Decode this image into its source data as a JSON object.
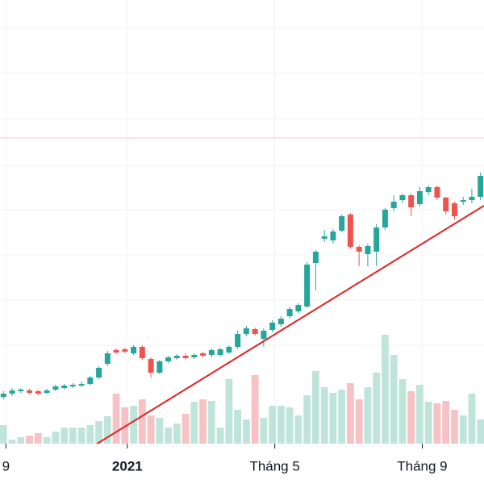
{
  "chart_data": {
    "type": "candlestick",
    "categories": [
      "9",
      null,
      null,
      null,
      null,
      null,
      null,
      null,
      null,
      null,
      null,
      null,
      null,
      null,
      "2021",
      null,
      null,
      null,
      null,
      null,
      null,
      null,
      null,
      null,
      null,
      null,
      null,
      null,
      null,
      null,
      null,
      "Tháng 5",
      null,
      null,
      null,
      null,
      null,
      null,
      null,
      null,
      null,
      null,
      null,
      null,
      null,
      null,
      null,
      null,
      "Tháng 9",
      null,
      null,
      null,
      null,
      null,
      null,
      null
    ],
    "bold_categories": [
      "2021"
    ],
    "open": [
      58,
      62,
      65,
      66,
      65,
      63,
      67,
      69,
      71,
      72,
      74,
      82,
      99,
      116,
      117,
      112,
      120,
      105,
      88,
      102,
      106,
      109,
      107,
      112,
      110,
      110,
      113,
      120,
      136,
      142,
      130,
      141,
      148,
      158,
      164,
      170,
      224,
      254,
      252,
      264,
      284,
      244,
      235,
      238,
      268,
      292,
      302,
      308,
      297,
      312,
      318,
      305,
      298,
      300,
      302,
      306
    ],
    "high": [
      65,
      69,
      69,
      68,
      67,
      68,
      73,
      74,
      75,
      77,
      84,
      96,
      115,
      118,
      119,
      122,
      122,
      107,
      104,
      109,
      111,
      112,
      112,
      114,
      118,
      119,
      122,
      140,
      146,
      144,
      143,
      153,
      158,
      170,
      174,
      225,
      240,
      265,
      266,
      284,
      286,
      246,
      248,
      272,
      292,
      308,
      310,
      310,
      318,
      320,
      320,
      306,
      300,
      306,
      316,
      336
    ],
    "low": [
      55,
      59,
      63,
      61,
      60,
      61,
      65,
      67,
      69,
      70,
      72,
      80,
      96,
      111,
      112,
      110,
      104,
      82,
      86,
      100,
      104,
      104,
      105,
      107,
      107,
      108,
      111,
      117,
      133,
      134,
      120,
      138,
      145,
      155,
      162,
      168,
      190,
      250,
      248,
      262,
      242,
      220,
      220,
      220,
      265,
      288,
      298,
      282,
      294,
      308,
      302,
      284,
      278,
      296,
      298,
      302
    ],
    "close": [
      62,
      66,
      67,
      63,
      62,
      66,
      71,
      72,
      73,
      74,
      82,
      94,
      112,
      113,
      114,
      120,
      106,
      88,
      102,
      107,
      109,
      106,
      110,
      109,
      116,
      117,
      120,
      136,
      143,
      136,
      140,
      150,
      155,
      167,
      172,
      222,
      238,
      257,
      263,
      282,
      244,
      238,
      245,
      268,
      290,
      300,
      308,
      293,
      313,
      318,
      305,
      288,
      282,
      302,
      306,
      332
    ],
    "volume": [
      23,
      5,
      8,
      10,
      13,
      8,
      15,
      20,
      20,
      20,
      23,
      28,
      34,
      62,
      45,
      47,
      55,
      35,
      32,
      20,
      25,
      37,
      52,
      55,
      53,
      20,
      80,
      42,
      30,
      85,
      32,
      47,
      47,
      45,
      35,
      60,
      90,
      70,
      63,
      67,
      75,
      55,
      70,
      88,
      135,
      110,
      80,
      65,
      73,
      52,
      50,
      53,
      42,
      35,
      62,
      30
    ],
    "up_color": "#26a69a",
    "down_color": "#ef5350",
    "volume_up_color": "#bfe5da",
    "volume_down_color": "#f8c2c5",
    "xlim": [
      -0.4,
      55.4
    ],
    "ylim": [
      0,
      550
    ],
    "yticks": [
      122,
      178,
      233,
      290,
      345,
      402,
      460,
      515
    ],
    "vlim": [
      0,
      550
    ],
    "grid": true,
    "horizontal_line": {
      "value": 379,
      "color": "#f7c9c9"
    },
    "trend_line": {
      "x": [
        10.8,
        55.4
      ],
      "y": [
        0,
        295
      ],
      "color": "#e02424"
    }
  }
}
